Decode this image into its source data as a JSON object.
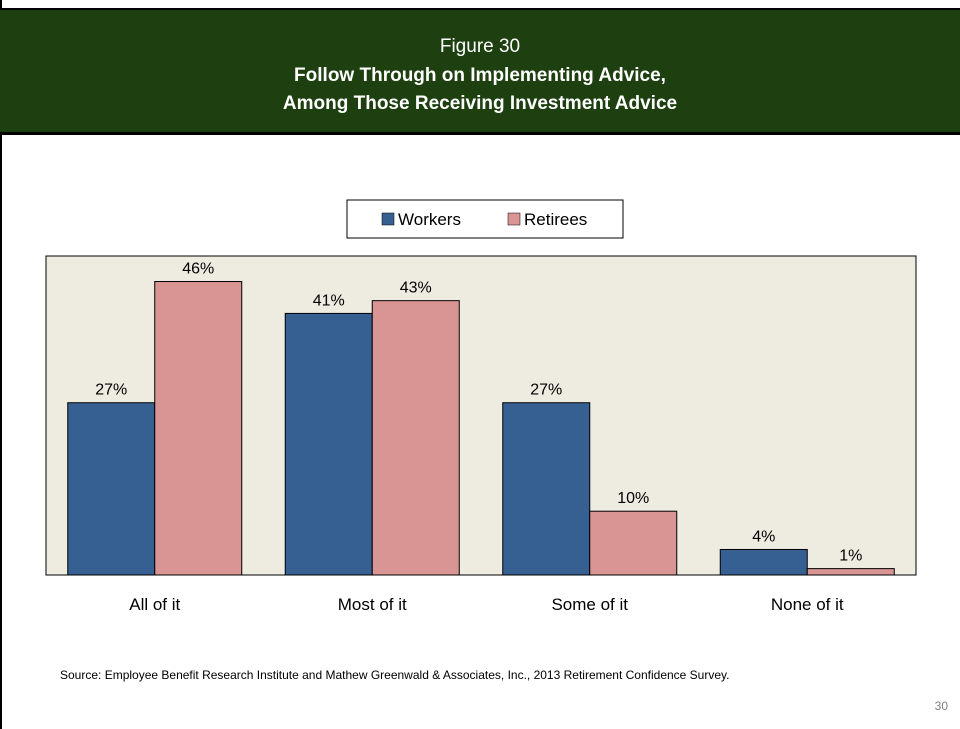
{
  "header": {
    "figure_number": "Figure 30",
    "title_line1": "Follow Through on Implementing Advice,",
    "title_line2": "Among Those Receiving Investment Advice"
  },
  "colors": {
    "header_bg": "#1e4011",
    "plot_bg": "#eeebe1",
    "workers": "#376092",
    "retirees": "#d99594"
  },
  "chart_data": {
    "type": "bar",
    "categories": [
      "All of it",
      "Most of it",
      "Some of it",
      "None of it"
    ],
    "series": [
      {
        "name": "Workers",
        "values": [
          27,
          41,
          27,
          4
        ],
        "labels": [
          "27%",
          "41%",
          "27%",
          "4%"
        ]
      },
      {
        "name": "Retirees",
        "values": [
          46,
          43,
          10,
          1
        ],
        "labels": [
          "46%",
          "43%",
          "10%",
          "1%"
        ]
      }
    ],
    "ylim": [
      0,
      50
    ],
    "grid": false,
    "legend_position": "top-center"
  },
  "footer": {
    "source": "Source:  Employee Benefit Research Institute and Mathew Greenwald & Associates, Inc., 2013 Retirement Confidence Survey.",
    "page_number": "30"
  }
}
